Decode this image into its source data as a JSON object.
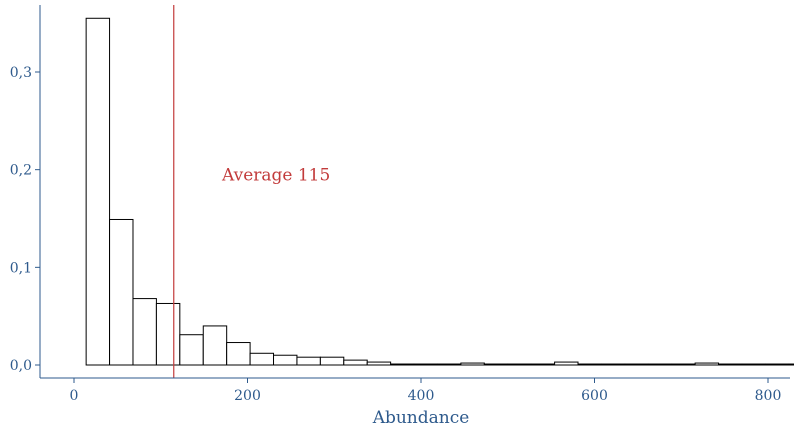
{
  "chart_data": {
    "type": "bar",
    "title": "",
    "xlabel": "Abundance",
    "ylabel": "",
    "xlim": [
      -30,
      830
    ],
    "ylim": [
      -0.012,
      0.37
    ],
    "x_ticks": [
      0,
      200,
      400,
      600,
      800
    ],
    "x_tick_labels": [
      "0",
      "200",
      "400",
      "600",
      "800"
    ],
    "y_ticks": [
      0.0,
      0.1,
      0.2,
      0.3
    ],
    "y_tick_labels": [
      "0,0",
      "0,1",
      "0,2",
      "0,3"
    ],
    "grid": false,
    "bin_start": 14,
    "bin_width": 27,
    "values": [
      0.355,
      0.149,
      0.068,
      0.063,
      0.031,
      0.04,
      0.023,
      0.012,
      0.01,
      0.008,
      0.008,
      0.005,
      0.003,
      0.001,
      0.001,
      0.001,
      0.002,
      0.001,
      0.001,
      0.001,
      0.003,
      0.001,
      0.001,
      0.001,
      0.001,
      0.001,
      0.002,
      0.001,
      0.001,
      0.001,
      0.001
    ],
    "reference_line": {
      "x": 115,
      "label": "Average 115",
      "color": "#c23b3b"
    }
  },
  "colors": {
    "axis": "#2e5a8c",
    "bar_stroke": "#000000",
    "bar_fill": "#ffffff",
    "reference": "#c23b3b"
  }
}
